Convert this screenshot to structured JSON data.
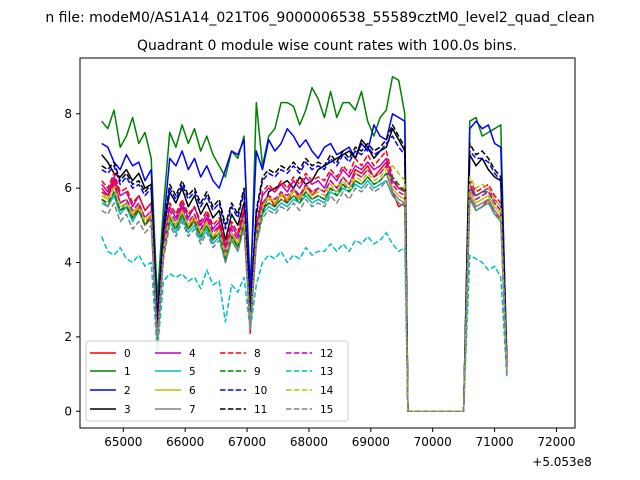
{
  "suptitle": "n file: modeM0/AS1A14_021T06_9000006538_55589cztM0_level2_quad_clean",
  "chart_data": {
    "type": "line",
    "title": "Quadrant 0 module wise count rates with 100.0s bins.",
    "xlabel": "",
    "ylabel": "",
    "x_offset_label": "+5.053e8",
    "xlim": [
      64300,
      72300
    ],
    "ylim": [
      -0.45,
      9.5
    ],
    "xticks": [
      65000,
      66000,
      67000,
      68000,
      69000,
      70000,
      71000,
      72000
    ],
    "xtick_labels": [
      "65000",
      "66000",
      "67000",
      "68000",
      "69000",
      "70000",
      "71000",
      "72000"
    ],
    "yticks": [
      0,
      2,
      4,
      6,
      8
    ],
    "ytick_labels": [
      "0",
      "2",
      "4",
      "6",
      "8"
    ],
    "grid": false,
    "legend_placement": "lower-left",
    "legend_columns": 4,
    "x_start": 64650,
    "x_step": 100,
    "gap_start": 69600,
    "gap_end": 70500,
    "series": [
      {
        "name": "0",
        "color": "#ff0000",
        "dash": "solid",
        "values": [
          6.0,
          5.8,
          6.2,
          5.6,
          5.7,
          5.2,
          5.5,
          5.0,
          5.3,
          2.0,
          4.3,
          5.3,
          5.0,
          5.5,
          4.9,
          5.2,
          4.8,
          5.2,
          4.6,
          5.0,
          4.2,
          4.8,
          4.4,
          5.3,
          2.1,
          4.6,
          5.6,
          5.8,
          5.5,
          5.9,
          5.6,
          6.0,
          5.7,
          6.1,
          5.8,
          6.0,
          5.9,
          6.2,
          6.0,
          6.3,
          6.1,
          6.5,
          6.4,
          6.6,
          6.3,
          6.5,
          6.7,
          5.9,
          5.5,
          5.6,
          5.8,
          5.4,
          5.5,
          5.7,
          5.3,
          5.2,
          1.2
        ]
      },
      {
        "name": "1",
        "color": "#008000",
        "dash": "solid",
        "values": [
          7.8,
          7.6,
          8.1,
          7.1,
          7.4,
          7.9,
          7.2,
          7.5,
          6.8,
          3.0,
          5.5,
          7.5,
          7.1,
          7.7,
          7.2,
          7.6,
          7.0,
          7.4,
          6.9,
          6.6,
          6.3,
          7.0,
          6.8,
          7.4,
          2.8,
          8.3,
          6.6,
          7.4,
          7.6,
          8.3,
          8.3,
          8.2,
          7.7,
          8.1,
          8.7,
          8.4,
          7.9,
          8.6,
          7.9,
          8.3,
          8.3,
          8.1,
          8.6,
          7.8,
          7.4,
          7.9,
          8.1,
          9.0,
          8.9,
          8.0,
          7.8,
          7.9,
          7.4,
          7.5,
          7.6,
          7.7,
          1.1
        ]
      },
      {
        "name": "2",
        "color": "#0000ff",
        "dash": "solid",
        "values": [
          7.2,
          7.1,
          6.7,
          6.5,
          6.9,
          6.6,
          6.7,
          6.2,
          6.5,
          2.5,
          5.0,
          6.8,
          6.6,
          7.0,
          6.5,
          6.8,
          6.3,
          6.6,
          6.2,
          6.0,
          6.5,
          7.0,
          6.9,
          7.3,
          3.3,
          7.0,
          6.5,
          7.3,
          7.0,
          7.2,
          7.6,
          7.4,
          7.1,
          7.3,
          7.0,
          6.8,
          7.1,
          7.2,
          6.9,
          7.0,
          7.1,
          6.8,
          7.2,
          7.0,
          7.7,
          7.4,
          7.3,
          8.0,
          7.9,
          7.8,
          7.6,
          7.8,
          7.6,
          7.7,
          7.2,
          7.1,
          1.4
        ]
      },
      {
        "name": "3",
        "color": "#000000",
        "dash": "solid",
        "values": [
          6.9,
          6.7,
          6.4,
          6.3,
          6.5,
          6.2,
          6.4,
          6.0,
          6.1,
          2.4,
          4.8,
          5.9,
          5.6,
          6.0,
          5.5,
          5.8,
          5.3,
          5.6,
          5.2,
          5.4,
          4.6,
          5.3,
          5.0,
          5.6,
          2.6,
          5.4,
          5.3,
          5.9,
          6.0,
          6.1,
          6.2,
          6.0,
          6.3,
          6.1,
          6.2,
          6.5,
          6.6,
          6.7,
          6.8,
          6.9,
          7.0,
          6.8,
          7.3,
          7.1,
          6.8,
          7.0,
          7.1,
          7.6,
          7.3,
          7.0,
          6.9,
          6.6,
          6.8,
          6.5,
          6.3,
          6.2,
          1.3
        ]
      },
      {
        "name": "4",
        "color": "#bf00bf",
        "dash": "solid",
        "values": [
          6.1,
          5.9,
          6.3,
          5.8,
          5.9,
          5.5,
          5.8,
          5.4,
          5.6,
          2.2,
          4.5,
          5.5,
          5.2,
          5.6,
          5.2,
          5.5,
          5.0,
          5.3,
          4.9,
          5.1,
          4.4,
          5.0,
          4.7,
          5.4,
          2.4,
          5.0,
          5.8,
          6.0,
          5.9,
          6.1,
          5.9,
          6.2,
          6.0,
          6.3,
          6.1,
          6.2,
          6.0,
          6.4,
          6.2,
          6.5,
          6.3,
          6.6,
          6.5,
          6.7,
          6.5,
          6.6,
          6.8,
          6.2,
          6.0,
          5.9,
          6.1,
          5.8,
          5.9,
          6.0,
          5.7,
          5.5,
          1.2
        ]
      },
      {
        "name": "5",
        "color": "#00bfbf",
        "dash": "solid",
        "values": [
          5.6,
          5.5,
          5.8,
          5.3,
          5.5,
          5.1,
          5.4,
          5.0,
          5.2,
          1.8,
          4.2,
          5.1,
          4.8,
          5.2,
          4.8,
          5.0,
          4.6,
          4.9,
          4.5,
          4.7,
          4.0,
          4.6,
          4.3,
          5.0,
          2.2,
          4.5,
          5.3,
          5.5,
          5.4,
          5.6,
          5.5,
          5.7,
          5.6,
          5.8,
          5.6,
          5.7,
          5.6,
          5.9,
          5.8,
          6.0,
          5.9,
          6.1,
          6.0,
          6.2,
          6.0,
          6.1,
          6.2,
          5.8,
          5.6,
          5.5,
          5.7,
          5.4,
          5.5,
          5.6,
          5.3,
          5.1,
          1.0
        ]
      },
      {
        "name": "6",
        "color": "#bfbf00",
        "dash": "solid",
        "values": [
          5.9,
          5.7,
          6.1,
          5.6,
          5.7,
          5.3,
          5.6,
          5.2,
          5.4,
          2.0,
          4.4,
          5.3,
          5.0,
          5.4,
          5.0,
          5.3,
          4.8,
          5.1,
          4.7,
          4.9,
          4.2,
          4.8,
          4.5,
          5.2,
          2.3,
          4.8,
          5.5,
          5.8,
          5.6,
          5.9,
          5.7,
          6.0,
          5.8,
          6.1,
          5.9,
          6.0,
          5.9,
          6.2,
          6.0,
          6.3,
          6.1,
          6.4,
          6.3,
          6.5,
          6.3,
          6.4,
          6.6,
          6.0,
          5.8,
          5.7,
          5.9,
          5.6,
          5.7,
          5.8,
          5.5,
          5.3,
          1.1
        ]
      },
      {
        "name": "7",
        "color": "#808080",
        "dash": "solid",
        "values": [
          5.7,
          5.5,
          5.9,
          5.4,
          5.6,
          5.2,
          5.4,
          5.0,
          5.2,
          1.9,
          4.2,
          5.2,
          4.9,
          5.3,
          4.9,
          5.1,
          4.7,
          5.0,
          4.6,
          4.8,
          4.1,
          4.7,
          4.4,
          5.1,
          2.2,
          4.7,
          5.4,
          5.6,
          5.5,
          5.7,
          5.6,
          5.8,
          5.7,
          5.9,
          5.7,
          5.8,
          5.7,
          6.0,
          5.9,
          6.1,
          6.0,
          6.2,
          6.1,
          6.3,
          6.1,
          6.2,
          6.4,
          5.9,
          5.7,
          5.6,
          5.8,
          5.5,
          5.6,
          5.7,
          5.4,
          5.2,
          1.1
        ]
      },
      {
        "name": "8",
        "color": "#ff0000",
        "dash": "dashed",
        "values": [
          6.2,
          6.0,
          6.4,
          5.9,
          6.0,
          5.6,
          5.8,
          5.4,
          5.6,
          2.1,
          4.5,
          5.6,
          5.3,
          5.7,
          5.3,
          5.5,
          5.1,
          5.4,
          5.0,
          5.2,
          4.5,
          5.1,
          4.8,
          5.5,
          2.4,
          4.9,
          5.9,
          6.1,
          5.9,
          6.2,
          6.0,
          6.3,
          6.1,
          6.4,
          6.2,
          6.3,
          6.2,
          6.5,
          6.3,
          6.6,
          6.4,
          6.8,
          6.6,
          6.9,
          6.6,
          6.8,
          7.0,
          6.3,
          6.0,
          6.0,
          6.2,
          5.9,
          6.0,
          6.1,
          5.8,
          5.6,
          1.2
        ]
      },
      {
        "name": "9",
        "color": "#008000",
        "dash": "dashed",
        "values": [
          5.7,
          5.6,
          5.9,
          5.4,
          5.5,
          5.2,
          5.4,
          5.0,
          5.2,
          1.9,
          4.3,
          5.2,
          4.9,
          5.3,
          4.9,
          5.1,
          4.7,
          5.0,
          4.6,
          4.8,
          4.1,
          4.7,
          4.4,
          5.1,
          2.3,
          4.6,
          5.4,
          5.6,
          5.5,
          5.7,
          5.6,
          5.8,
          5.6,
          5.9,
          5.7,
          5.8,
          5.7,
          6.0,
          5.8,
          6.1,
          5.9,
          6.2,
          6.1,
          6.3,
          6.1,
          6.2,
          6.4,
          6.3,
          6.1,
          5.9,
          6.0,
          5.8,
          5.9,
          5.9,
          5.6,
          5.4,
          1.1
        ]
      },
      {
        "name": "10",
        "color": "#0000ff",
        "dash": "dashed",
        "values": [
          6.5,
          6.4,
          6.6,
          6.1,
          6.3,
          6.0,
          6.1,
          5.8,
          6.0,
          2.3,
          4.8,
          6.0,
          5.7,
          6.1,
          5.7,
          5.9,
          5.5,
          5.8,
          5.4,
          5.6,
          4.9,
          5.5,
          5.2,
          5.9,
          2.5,
          5.3,
          6.2,
          6.4,
          6.3,
          6.5,
          6.4,
          6.6,
          6.4,
          6.7,
          6.5,
          6.6,
          6.5,
          6.8,
          6.6,
          6.9,
          6.7,
          7.0,
          6.9,
          7.1,
          6.9,
          7.0,
          7.2,
          7.4,
          7.1,
          6.9,
          7.0,
          6.8,
          6.8,
          6.7,
          6.4,
          6.2,
          1.3
        ]
      },
      {
        "name": "11",
        "color": "#000000",
        "dash": "dashed",
        "values": [
          6.6,
          6.5,
          6.7,
          6.2,
          6.4,
          6.1,
          6.2,
          5.9,
          6.1,
          2.3,
          4.9,
          6.1,
          5.8,
          6.2,
          5.8,
          6.0,
          5.6,
          5.9,
          5.5,
          5.7,
          5.0,
          5.6,
          5.3,
          6.0,
          2.6,
          5.4,
          6.3,
          6.5,
          6.4,
          6.6,
          6.5,
          6.7,
          6.5,
          6.8,
          6.6,
          6.7,
          6.6,
          6.9,
          6.7,
          7.0,
          6.8,
          7.1,
          7.0,
          7.2,
          7.0,
          7.1,
          7.3,
          7.7,
          7.4,
          7.1,
          7.2,
          6.9,
          7.0,
          6.8,
          6.5,
          6.3,
          1.3
        ]
      },
      {
        "name": "12",
        "color": "#bf00bf",
        "dash": "dashed",
        "values": [
          5.9,
          5.8,
          6.1,
          5.6,
          5.7,
          5.4,
          5.6,
          5.2,
          5.4,
          2.0,
          4.4,
          5.4,
          5.1,
          5.5,
          5.1,
          5.3,
          4.9,
          5.2,
          4.8,
          5.0,
          4.3,
          4.9,
          4.6,
          5.3,
          2.3,
          4.8,
          5.6,
          5.8,
          5.7,
          5.9,
          5.8,
          6.0,
          5.8,
          6.1,
          5.9,
          6.0,
          5.9,
          6.2,
          6.0,
          6.3,
          6.1,
          6.4,
          6.3,
          6.5,
          6.3,
          6.4,
          6.6,
          6.1,
          5.9,
          5.8,
          6.0,
          5.7,
          5.8,
          5.9,
          5.6,
          5.4,
          1.1
        ]
      },
      {
        "name": "13",
        "color": "#00bfbf",
        "dash": "dashed",
        "values": [
          4.7,
          4.3,
          4.2,
          4.4,
          4.1,
          4.0,
          4.2,
          3.9,
          4.0,
          1.6,
          3.5,
          3.7,
          3.6,
          3.7,
          3.5,
          3.6,
          3.3,
          3.8,
          3.4,
          3.5,
          2.4,
          3.4,
          3.2,
          3.6,
          2.2,
          3.4,
          4.0,
          4.2,
          4.1,
          4.3,
          4.0,
          4.2,
          4.1,
          4.4,
          4.2,
          4.3,
          4.3,
          4.5,
          4.3,
          4.5,
          4.3,
          4.6,
          4.5,
          4.7,
          4.5,
          4.6,
          4.8,
          4.5,
          4.3,
          4.4,
          4.2,
          4.1,
          4.0,
          3.8,
          3.9,
          3.6,
          0.9
        ]
      },
      {
        "name": "14",
        "color": "#bfbf00",
        "dash": "dashed",
        "values": [
          5.8,
          5.7,
          6.0,
          5.5,
          5.6,
          5.3,
          5.5,
          5.1,
          5.3,
          1.9,
          4.3,
          5.3,
          5.0,
          5.4,
          5.0,
          5.2,
          4.8,
          5.1,
          4.7,
          4.9,
          4.2,
          4.8,
          4.5,
          5.2,
          2.3,
          4.7,
          5.5,
          5.7,
          5.6,
          5.8,
          5.7,
          5.9,
          5.7,
          6.0,
          5.8,
          5.9,
          5.8,
          6.1,
          5.9,
          6.2,
          6.0,
          6.3,
          6.2,
          6.4,
          6.2,
          6.3,
          6.5,
          6.6,
          6.4,
          6.2,
          6.3,
          6.0,
          6.1,
          6.0,
          5.7,
          5.5,
          1.1
        ]
      },
      {
        "name": "15",
        "color": "#808080",
        "dash": "dashed",
        "values": [
          5.4,
          5.3,
          5.6,
          5.1,
          5.3,
          4.9,
          5.1,
          4.8,
          5.0,
          1.8,
          4.1,
          5.0,
          4.7,
          5.1,
          4.7,
          4.9,
          4.5,
          4.8,
          4.4,
          4.6,
          4.0,
          4.6,
          4.3,
          4.9,
          2.2,
          4.5,
          5.2,
          5.4,
          5.3,
          5.5,
          5.4,
          5.6,
          5.4,
          5.7,
          5.5,
          5.6,
          5.5,
          5.8,
          5.6,
          5.9,
          5.7,
          6.0,
          5.9,
          6.1,
          5.9,
          6.0,
          6.2,
          5.8,
          5.6,
          5.5,
          5.7,
          5.4,
          5.5,
          5.6,
          5.3,
          5.1,
          1.0
        ]
      }
    ]
  }
}
